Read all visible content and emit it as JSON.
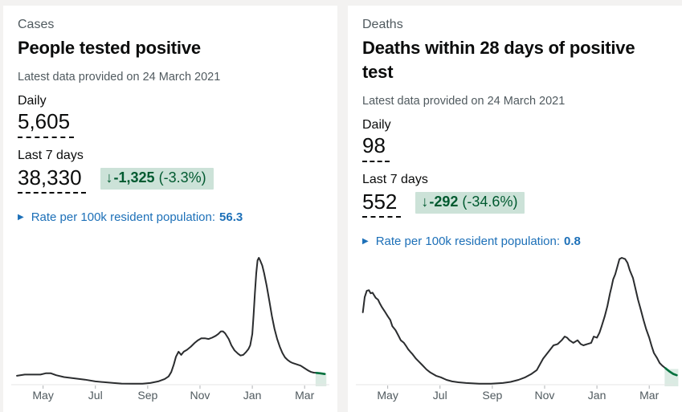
{
  "colors": {
    "page_bg": "#f3f2f1",
    "card_bg": "#ffffff",
    "text_primary": "#0b0c0c",
    "text_secondary": "#505a5f",
    "link_blue": "#1d70b8",
    "badge_bg": "#cce2d8",
    "badge_text": "#005a30",
    "chart_line": "#2b2d2f",
    "highlight_green": "#00703c",
    "axis_line": "#e4e5e6",
    "tick_color": "#b1b4b6"
  },
  "icons": {
    "decrease_arrow": "↓",
    "details_marker": "▶"
  },
  "cards": [
    {
      "category": "Cases",
      "title": "People tested positive",
      "updated": "Latest data provided on 24 March 2021",
      "daily_label": "Daily",
      "daily_value": "5,605",
      "weekly_label": "Last 7 days",
      "weekly_value": "38,330",
      "change": {
        "arrow": "↓",
        "value": "-1,325",
        "percent": "(-3.3%)"
      },
      "rate_label": "Rate per 100k resident population:",
      "rate_value": "56.3",
      "chart_data": {
        "type": "line",
        "title": "Daily people tested positive, Apr 2020 - Mar 2021",
        "x_unit": "months since 1 April 2020",
        "y_unit": "percent of peak (peak ~ early Jan 2021)",
        "x_ticks": [
          {
            "label": "May",
            "t": 1
          },
          {
            "label": "Jul",
            "t": 3
          },
          {
            "label": "Sep",
            "t": 5
          },
          {
            "label": "Nov",
            "t": 7
          },
          {
            "label": "Jan",
            "t": 9
          },
          {
            "label": "Mar",
            "t": 11
          }
        ],
        "highlight_from_t": 11.45,
        "series": [
          [
            0.0,
            7
          ],
          [
            0.3,
            8
          ],
          [
            0.6,
            8
          ],
          [
            0.9,
            8
          ],
          [
            1.1,
            9
          ],
          [
            1.3,
            9
          ],
          [
            1.5,
            7.5
          ],
          [
            1.8,
            6
          ],
          [
            2.2,
            5
          ],
          [
            2.6,
            4
          ],
          [
            3.0,
            2.6
          ],
          [
            3.3,
            2
          ],
          [
            3.7,
            1.3
          ],
          [
            4.0,
            0.9
          ],
          [
            4.4,
            0.8
          ],
          [
            4.8,
            0.8
          ],
          [
            5.1,
            1.3
          ],
          [
            5.4,
            2.6
          ],
          [
            5.65,
            4.5
          ],
          [
            5.8,
            6.5
          ],
          [
            5.9,
            10
          ],
          [
            6.0,
            16
          ],
          [
            6.08,
            22
          ],
          [
            6.18,
            26
          ],
          [
            6.28,
            23.5
          ],
          [
            6.38,
            26
          ],
          [
            6.5,
            27.5
          ],
          [
            6.65,
            30
          ],
          [
            6.8,
            33
          ],
          [
            6.92,
            35
          ],
          [
            7.05,
            36.5
          ],
          [
            7.2,
            36.5
          ],
          [
            7.33,
            36
          ],
          [
            7.46,
            37
          ],
          [
            7.6,
            38.5
          ],
          [
            7.7,
            40
          ],
          [
            7.8,
            42
          ],
          [
            7.88,
            42
          ],
          [
            7.96,
            40.5
          ],
          [
            8.1,
            36
          ],
          [
            8.2,
            31
          ],
          [
            8.32,
            27
          ],
          [
            8.45,
            24.5
          ],
          [
            8.55,
            23
          ],
          [
            8.65,
            23.5
          ],
          [
            8.75,
            25.5
          ],
          [
            8.85,
            28
          ],
          [
            8.92,
            31
          ],
          [
            9.0,
            40
          ],
          [
            9.05,
            55
          ],
          [
            9.1,
            72
          ],
          [
            9.15,
            88
          ],
          [
            9.2,
            98
          ],
          [
            9.25,
            100
          ],
          [
            9.3,
            98
          ],
          [
            9.38,
            94
          ],
          [
            9.45,
            88
          ],
          [
            9.55,
            78
          ],
          [
            9.65,
            66
          ],
          [
            9.75,
            54
          ],
          [
            9.85,
            44
          ],
          [
            9.95,
            36
          ],
          [
            10.05,
            30
          ],
          [
            10.15,
            25
          ],
          [
            10.25,
            21.5
          ],
          [
            10.35,
            19.5
          ],
          [
            10.45,
            18
          ],
          [
            10.55,
            17
          ],
          [
            10.7,
            16
          ],
          [
            10.85,
            15
          ],
          [
            11.0,
            13
          ],
          [
            11.15,
            11
          ],
          [
            11.25,
            10
          ],
          [
            11.35,
            9.5
          ],
          [
            11.45,
            9.3
          ],
          [
            11.6,
            9
          ],
          [
            11.7,
            8.7
          ],
          [
            11.77,
            8.4
          ]
        ]
      }
    },
    {
      "category": "Deaths",
      "title": "Deaths within 28 days of positive test",
      "updated": "Latest data provided on 24 March 2021",
      "daily_label": "Daily",
      "daily_value": "98",
      "weekly_label": "Last 7 days",
      "weekly_value": "552",
      "change": {
        "arrow": "↓",
        "value": "-292",
        "percent": "(-34.6%)"
      },
      "rate_label": "Rate per 100k resident population:",
      "rate_value": "0.8",
      "chart_data": {
        "type": "line",
        "title": "Daily deaths within 28 days of positive test, Apr 2020 - Mar 2021",
        "x_unit": "months since 1 April 2020",
        "y_unit": "percent of peak (peak ~ late Jan 2021)",
        "x_ticks": [
          {
            "label": "May",
            "t": 1
          },
          {
            "label": "Jul",
            "t": 3
          },
          {
            "label": "Sep",
            "t": 5
          },
          {
            "label": "Nov",
            "t": 7
          },
          {
            "label": "Jan",
            "t": 9
          },
          {
            "label": "Mar",
            "t": 11
          }
        ],
        "highlight_from_t": 11.62,
        "series": [
          [
            0.05,
            57
          ],
          [
            0.12,
            69
          ],
          [
            0.2,
            74
          ],
          [
            0.28,
            74.5
          ],
          [
            0.35,
            72
          ],
          [
            0.42,
            72.5
          ],
          [
            0.54,
            68.5
          ],
          [
            0.63,
            67
          ],
          [
            0.7,
            64
          ],
          [
            0.78,
            61
          ],
          [
            0.88,
            58
          ],
          [
            1.0,
            54
          ],
          [
            1.1,
            51
          ],
          [
            1.18,
            46
          ],
          [
            1.3,
            43
          ],
          [
            1.4,
            39
          ],
          [
            1.5,
            35
          ],
          [
            1.62,
            33
          ],
          [
            1.72,
            30
          ],
          [
            1.78,
            28
          ],
          [
            1.86,
            26
          ],
          [
            1.95,
            24
          ],
          [
            2.08,
            20.5
          ],
          [
            2.18,
            18.5
          ],
          [
            2.32,
            15.5
          ],
          [
            2.48,
            12
          ],
          [
            2.63,
            9.6
          ],
          [
            2.85,
            7
          ],
          [
            3.03,
            5.8
          ],
          [
            3.25,
            3.8
          ],
          [
            3.46,
            2.6
          ],
          [
            3.7,
            1.9
          ],
          [
            4.0,
            1.3
          ],
          [
            4.5,
            0.8
          ],
          [
            4.95,
            0.8
          ],
          [
            5.4,
            1.3
          ],
          [
            5.7,
            2.2
          ],
          [
            6.0,
            3.8
          ],
          [
            6.26,
            5.8
          ],
          [
            6.48,
            8.3
          ],
          [
            6.7,
            11.5
          ],
          [
            6.94,
            20.5
          ],
          [
            7.15,
            26
          ],
          [
            7.34,
            31
          ],
          [
            7.5,
            32
          ],
          [
            7.65,
            35
          ],
          [
            7.77,
            38
          ],
          [
            7.86,
            37
          ],
          [
            7.95,
            35
          ],
          [
            8.1,
            33
          ],
          [
            8.26,
            35
          ],
          [
            8.38,
            32
          ],
          [
            8.48,
            31
          ],
          [
            8.63,
            32
          ],
          [
            8.78,
            33
          ],
          [
            8.88,
            38
          ],
          [
            9.0,
            37
          ],
          [
            9.1,
            41
          ],
          [
            9.18,
            46
          ],
          [
            9.3,
            54
          ],
          [
            9.4,
            62
          ],
          [
            9.5,
            72
          ],
          [
            9.56,
            77
          ],
          [
            9.62,
            83
          ],
          [
            9.7,
            87
          ],
          [
            9.78,
            93
          ],
          [
            9.86,
            99
          ],
          [
            9.95,
            100
          ],
          [
            10.08,
            99
          ],
          [
            10.17,
            96
          ],
          [
            10.26,
            90
          ],
          [
            10.38,
            84
          ],
          [
            10.48,
            75
          ],
          [
            10.57,
            67
          ],
          [
            10.68,
            59
          ],
          [
            10.78,
            51
          ],
          [
            10.88,
            44
          ],
          [
            11.0,
            37
          ],
          [
            11.1,
            30
          ],
          [
            11.18,
            25
          ],
          [
            11.3,
            21
          ],
          [
            11.4,
            17
          ],
          [
            11.5,
            15
          ],
          [
            11.62,
            13
          ],
          [
            11.77,
            10.5
          ],
          [
            11.92,
            8.5
          ],
          [
            12.05,
            7.5
          ]
        ]
      }
    }
  ]
}
